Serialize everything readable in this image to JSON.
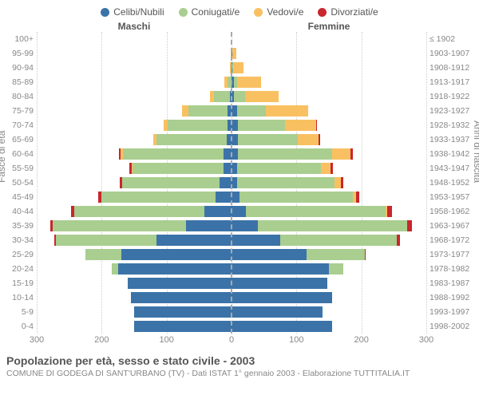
{
  "chart": {
    "type": "population-pyramid",
    "legend": [
      {
        "label": "Celibi/Nubili",
        "color": "#3b73a8"
      },
      {
        "label": "Coniugati/e",
        "color": "#a9ce8f"
      },
      {
        "label": "Vedovi/e",
        "color": "#f9c061"
      },
      {
        "label": "Divorziati/e",
        "color": "#c8272d"
      }
    ],
    "male_header": "Maschi",
    "female_header": "Femmine",
    "left_axis_title": "Fasce di età",
    "right_axis_title": "Anni di nascita",
    "x_max": 300,
    "x_ticks": [
      300,
      200,
      100,
      0,
      100,
      200,
      300
    ],
    "background_color": "#ffffff",
    "grid_color": "#cccccc",
    "title": "Popolazione per età, sesso e stato civile - 2003",
    "subtitle": "COMUNE DI GODEGA DI SANT'URBANO (TV) - Dati ISTAT 1° gennaio 2003 - Elaborazione TUTTITALIA.IT",
    "rows": [
      {
        "age": "100+",
        "birth": "≤ 1902",
        "m": [
          0,
          0,
          0,
          0
        ],
        "f": [
          0,
          0,
          0,
          0
        ]
      },
      {
        "age": "95-99",
        "birth": "1903-1907",
        "m": [
          0,
          0,
          1,
          0
        ],
        "f": [
          1,
          0,
          6,
          0
        ]
      },
      {
        "age": "90-94",
        "birth": "1908-1912",
        "m": [
          0,
          0,
          3,
          0
        ],
        "f": [
          1,
          2,
          15,
          0
        ]
      },
      {
        "age": "85-89",
        "birth": "1913-1917",
        "m": [
          0,
          6,
          5,
          0
        ],
        "f": [
          4,
          5,
          36,
          0
        ]
      },
      {
        "age": "80-84",
        "birth": "1918-1922",
        "m": [
          2,
          25,
          6,
          0
        ],
        "f": [
          4,
          17,
          52,
          0
        ]
      },
      {
        "age": "75-79",
        "birth": "1923-1927",
        "m": [
          6,
          60,
          10,
          0
        ],
        "f": [
          8,
          45,
          65,
          0
        ]
      },
      {
        "age": "70-74",
        "birth": "1928-1932",
        "m": [
          6,
          92,
          7,
          0
        ],
        "f": [
          10,
          72,
          48,
          2
        ]
      },
      {
        "age": "65-69",
        "birth": "1933-1937",
        "m": [
          8,
          108,
          5,
          0
        ],
        "f": [
          10,
          92,
          32,
          2
        ]
      },
      {
        "age": "60-64",
        "birth": "1938-1942",
        "m": [
          12,
          155,
          4,
          3
        ],
        "f": [
          10,
          145,
          28,
          4
        ]
      },
      {
        "age": "55-59",
        "birth": "1943-1947",
        "m": [
          12,
          140,
          2,
          3
        ],
        "f": [
          8,
          130,
          15,
          3
        ]
      },
      {
        "age": "50-54",
        "birth": "1948-1952",
        "m": [
          18,
          150,
          1,
          3
        ],
        "f": [
          8,
          150,
          10,
          4
        ]
      },
      {
        "age": "45-49",
        "birth": "1953-1957",
        "m": [
          25,
          175,
          0,
          5
        ],
        "f": [
          12,
          175,
          5,
          5
        ]
      },
      {
        "age": "40-44",
        "birth": "1958-1962",
        "m": [
          42,
          200,
          0,
          5
        ],
        "f": [
          22,
          215,
          3,
          7
        ]
      },
      {
        "age": "35-39",
        "birth": "1963-1967",
        "m": [
          70,
          205,
          0,
          4
        ],
        "f": [
          40,
          230,
          1,
          7
        ]
      },
      {
        "age": "30-34",
        "birth": "1968-1972",
        "m": [
          115,
          155,
          0,
          3
        ],
        "f": [
          75,
          180,
          0,
          5
        ]
      },
      {
        "age": "25-29",
        "birth": "1973-1977",
        "m": [
          170,
          55,
          0,
          0
        ],
        "f": [
          115,
          90,
          0,
          2
        ]
      },
      {
        "age": "20-24",
        "birth": "1978-1982",
        "m": [
          175,
          10,
          0,
          0
        ],
        "f": [
          150,
          22,
          0,
          0
        ]
      },
      {
        "age": "15-19",
        "birth": "1983-1987",
        "m": [
          160,
          0,
          0,
          0
        ],
        "f": [
          148,
          0,
          0,
          0
        ]
      },
      {
        "age": "10-14",
        "birth": "1988-1992",
        "m": [
          155,
          0,
          0,
          0
        ],
        "f": [
          155,
          0,
          0,
          0
        ]
      },
      {
        "age": "5-9",
        "birth": "1993-1997",
        "m": [
          150,
          0,
          0,
          0
        ],
        "f": [
          140,
          0,
          0,
          0
        ]
      },
      {
        "age": "0-4",
        "birth": "1998-2002",
        "m": [
          150,
          0,
          0,
          0
        ],
        "f": [
          155,
          0,
          0,
          0
        ]
      }
    ]
  }
}
